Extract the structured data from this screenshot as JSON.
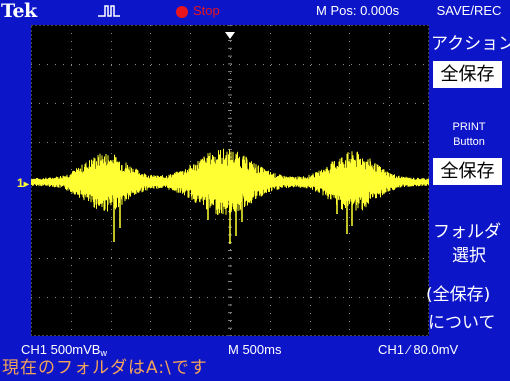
{
  "header": {
    "brand": "Tek",
    "trigger_status": "Stop",
    "m_pos": "M Pos: 0.000s"
  },
  "menu": {
    "title": "SAVE/REC",
    "action_label": "アクション",
    "action_value": "全保存",
    "print_label_line1": "PRINT",
    "print_label_line2": "Button",
    "print_value": "全保存",
    "folder_line1": "フォルダ",
    "folder_line2": "選択",
    "about_line1": "(全保存)",
    "about_line2": "について"
  },
  "status": {
    "ch1_scale": "CH1  500mVB",
    "bw_suffix": "w",
    "timebase": "M 500ms",
    "trigger": "CH1  ∕  80.0mV",
    "message": "現在のフォルダはA:\\です"
  },
  "channel_marker": "1",
  "colors": {
    "background": "#0d15c8",
    "trace": "#ffff33",
    "stop": "#e8141e",
    "message": "#f2a35a"
  }
}
